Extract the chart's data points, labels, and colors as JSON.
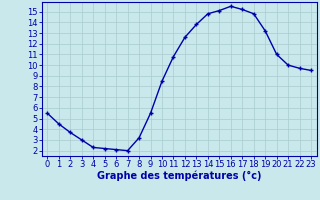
{
  "x": [
    0,
    1,
    2,
    3,
    4,
    5,
    6,
    7,
    8,
    9,
    10,
    11,
    12,
    13,
    14,
    15,
    16,
    17,
    18,
    19,
    20,
    21,
    22,
    23
  ],
  "y": [
    5.5,
    4.5,
    3.7,
    3.0,
    2.3,
    2.2,
    2.1,
    2.0,
    3.2,
    5.5,
    8.5,
    10.8,
    12.6,
    13.8,
    14.8,
    15.1,
    15.5,
    15.2,
    14.8,
    13.2,
    11.0,
    10.0,
    9.7,
    9.5
  ],
  "line_color": "#0000AA",
  "marker": "+",
  "marker_size": 3.5,
  "bg_color": "#C8E8EC",
  "grid_color": "#AACCCF",
  "xlabel": "Graphe des températures (°c)",
  "xlim": [
    -0.5,
    23.5
  ],
  "ylim": [
    1.5,
    15.9
  ],
  "yticks": [
    2,
    3,
    4,
    5,
    6,
    7,
    8,
    9,
    10,
    11,
    12,
    13,
    14,
    15
  ],
  "xticks": [
    0,
    1,
    2,
    3,
    4,
    5,
    6,
    7,
    8,
    9,
    10,
    11,
    12,
    13,
    14,
    15,
    16,
    17,
    18,
    19,
    20,
    21,
    22,
    23
  ],
  "tick_fontsize": 6,
  "xlabel_fontsize": 7
}
